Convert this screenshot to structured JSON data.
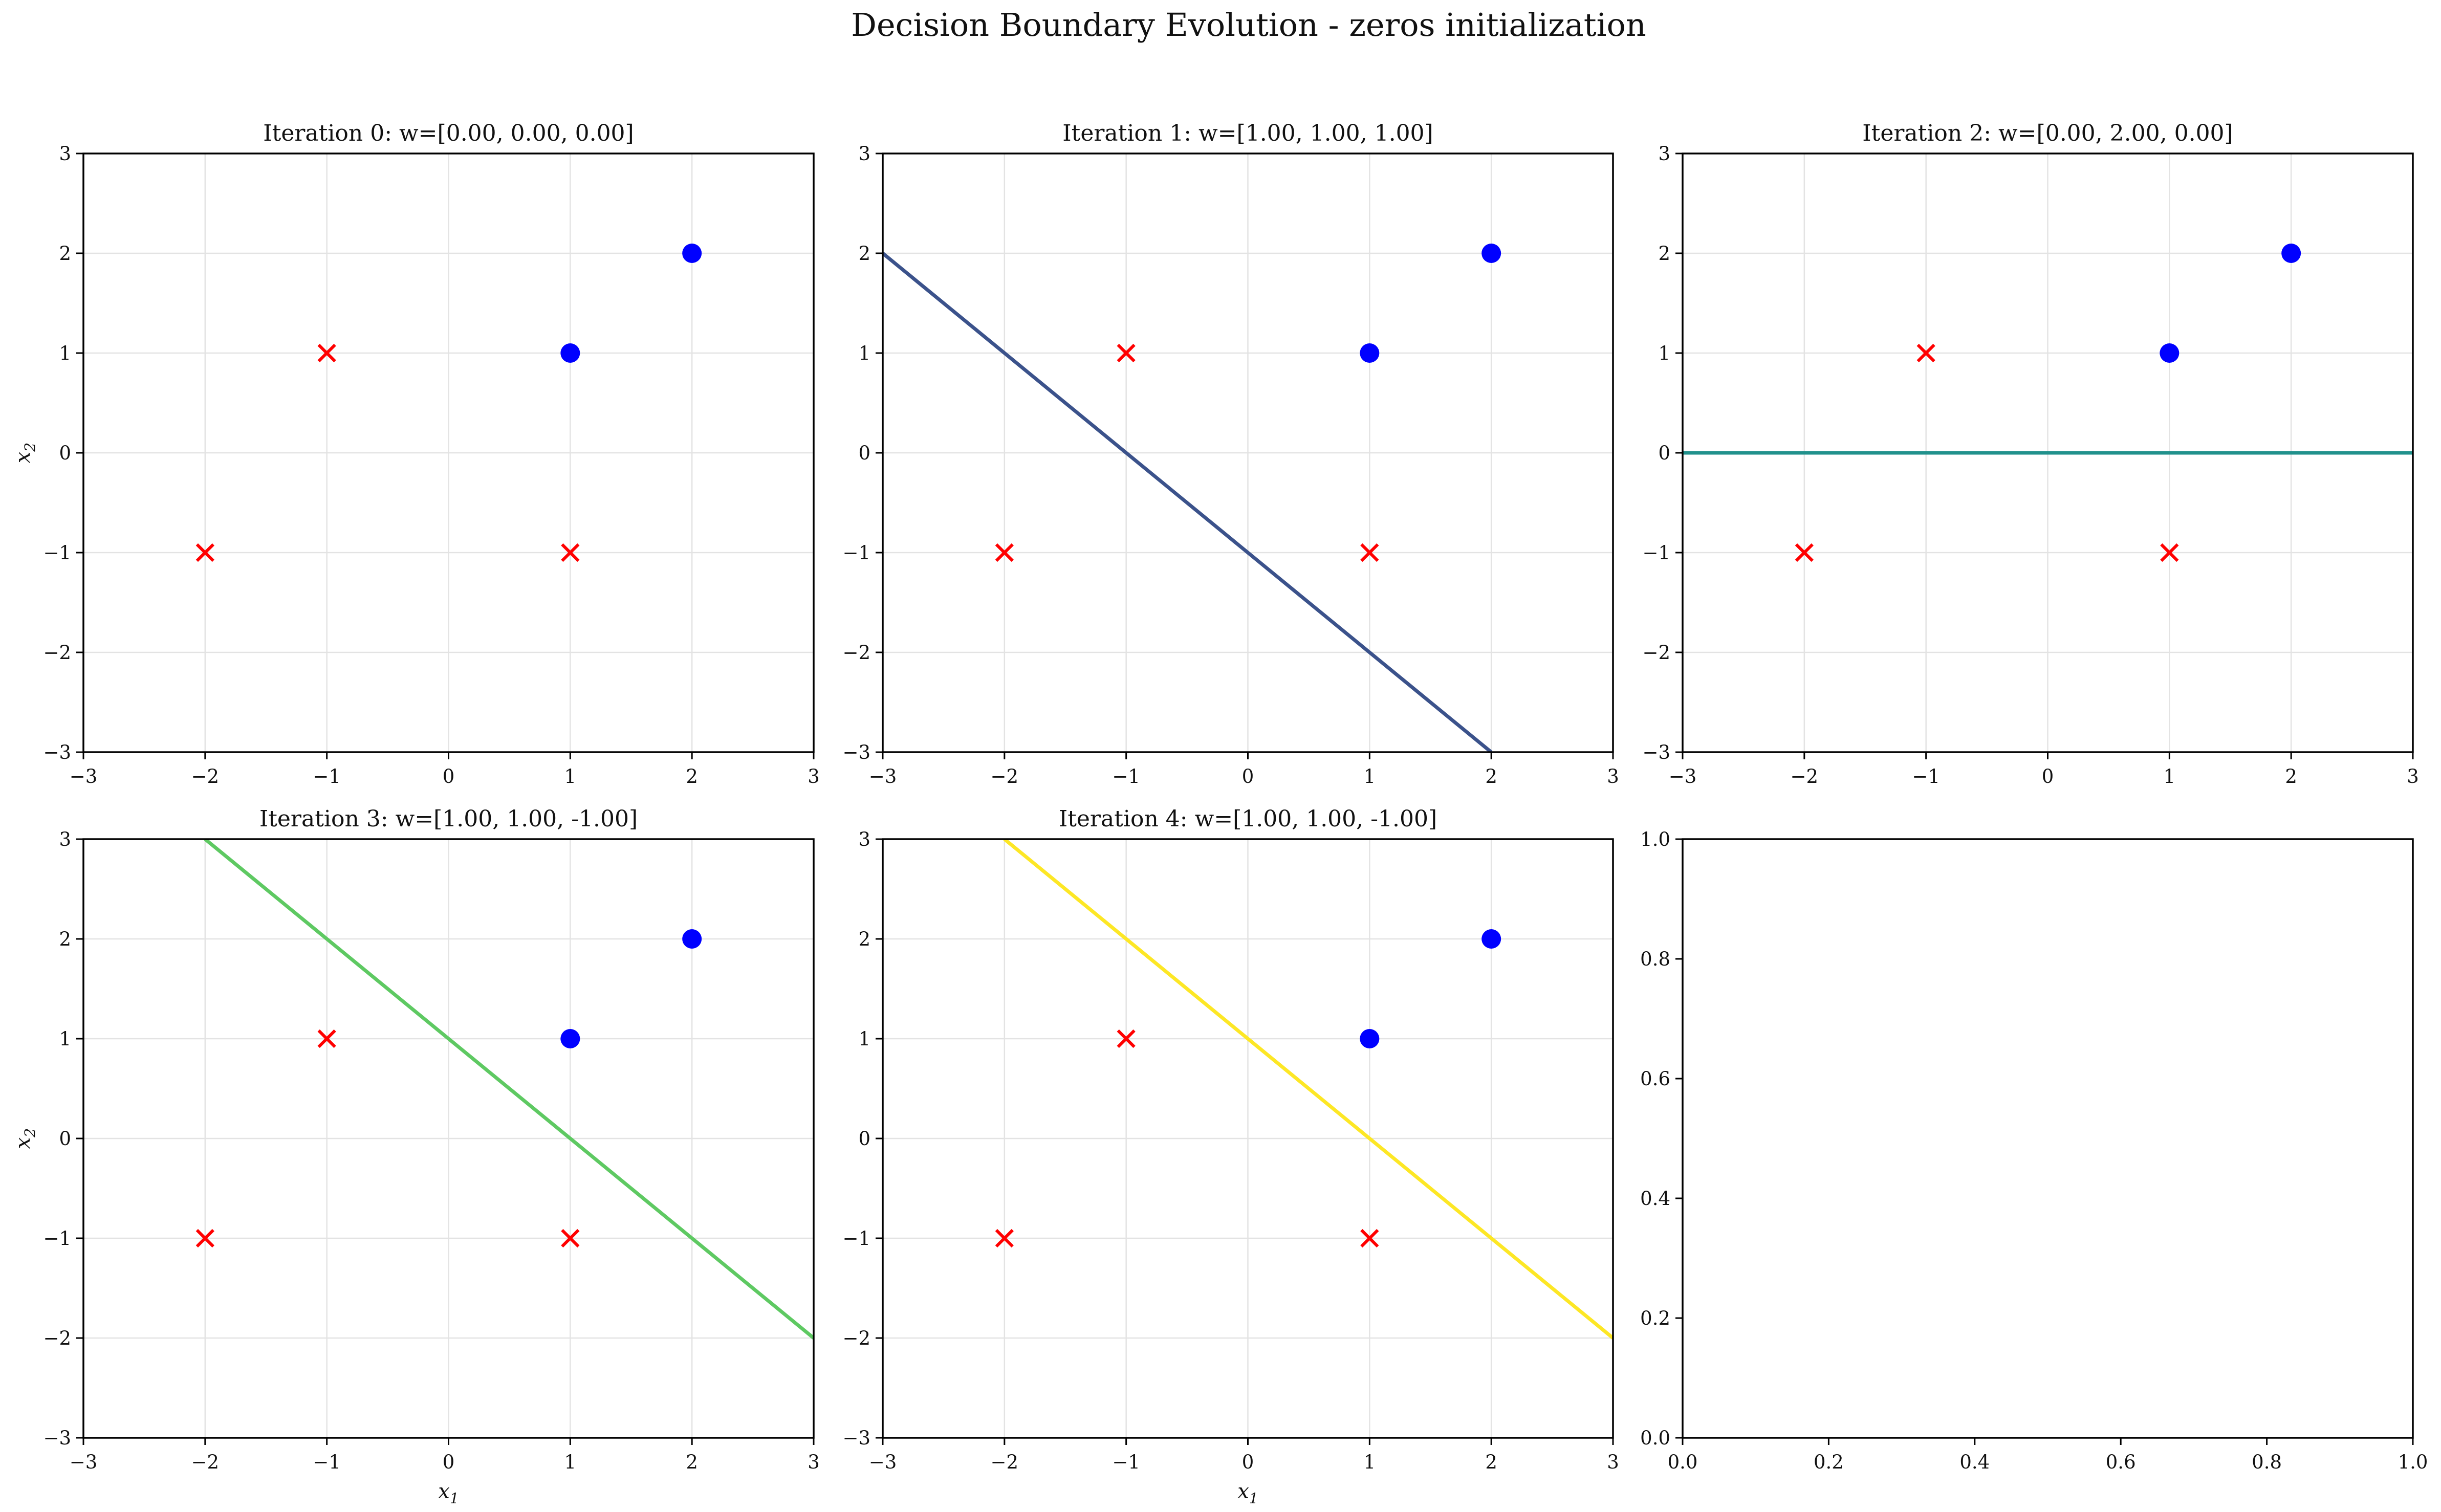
{
  "figure": {
    "title": "Decision Boundary Evolution - zeros initialization"
  },
  "chart_data": [
    {
      "type": "scatter",
      "title": "Iteration 0: w=[0.00, 0.00, 0.00]",
      "xlabel": "",
      "ylabel": "x2",
      "xlim": [
        -3,
        3
      ],
      "ylim": [
        -3,
        3
      ],
      "xticks": [
        "−3",
        "−2",
        "−1",
        "0",
        "1",
        "2",
        "3"
      ],
      "yticks": [
        "−3",
        "−2",
        "−1",
        "0",
        "1",
        "2",
        "3"
      ],
      "grid": true,
      "weights": [
        0.0,
        0.0,
        0.0
      ],
      "boundary": null,
      "series": [
        {
          "marker": "circle",
          "color": "#0000ff",
          "points": [
            [
              1,
              1
            ],
            [
              2,
              2
            ]
          ]
        },
        {
          "marker": "x",
          "color": "#ff0000",
          "points": [
            [
              -1,
              1
            ],
            [
              -2,
              -1
            ],
            [
              1,
              -1
            ]
          ]
        }
      ]
    },
    {
      "type": "scatter",
      "title": "Iteration 1: w=[1.00, 1.00, 1.00]",
      "xlabel": "",
      "ylabel": "",
      "xlim": [
        -3,
        3
      ],
      "ylim": [
        -3,
        3
      ],
      "xticks": [
        "−3",
        "−2",
        "−1",
        "0",
        "1",
        "2",
        "3"
      ],
      "yticks": [
        "−3",
        "−2",
        "−1",
        "0",
        "1",
        "2",
        "3"
      ],
      "grid": true,
      "weights": [
        1.0,
        1.0,
        1.0
      ],
      "boundary": {
        "color": "#3b528b",
        "points": [
          [
            -3,
            2
          ],
          [
            2,
            -3
          ]
        ]
      },
      "series": [
        {
          "marker": "circle",
          "color": "#0000ff",
          "points": [
            [
              1,
              1
            ],
            [
              2,
              2
            ]
          ]
        },
        {
          "marker": "x",
          "color": "#ff0000",
          "points": [
            [
              -1,
              1
            ],
            [
              -2,
              -1
            ],
            [
              1,
              -1
            ]
          ]
        }
      ]
    },
    {
      "type": "scatter",
      "title": "Iteration 2: w=[0.00, 2.00, 0.00]",
      "xlabel": "",
      "ylabel": "",
      "xlim": [
        -3,
        3
      ],
      "ylim": [
        -3,
        3
      ],
      "xticks": [
        "−3",
        "−2",
        "−1",
        "0",
        "1",
        "2",
        "3"
      ],
      "yticks": [
        "−3",
        "−2",
        "−1",
        "0",
        "1",
        "2",
        "3"
      ],
      "grid": true,
      "weights": [
        0.0,
        2.0,
        0.0
      ],
      "boundary": {
        "color": "#21918c",
        "points": [
          [
            -3,
            0
          ],
          [
            3,
            0
          ]
        ]
      },
      "series": [
        {
          "marker": "circle",
          "color": "#0000ff",
          "points": [
            [
              1,
              1
            ],
            [
              2,
              2
            ]
          ]
        },
        {
          "marker": "x",
          "color": "#ff0000",
          "points": [
            [
              -1,
              1
            ],
            [
              -2,
              -1
            ],
            [
              1,
              -1
            ]
          ]
        }
      ]
    },
    {
      "type": "scatter",
      "title": "Iteration 3: w=[1.00, 1.00, -1.00]",
      "xlabel": "x1",
      "ylabel": "x2",
      "xlim": [
        -3,
        3
      ],
      "ylim": [
        -3,
        3
      ],
      "xticks": [
        "−3",
        "−2",
        "−1",
        "0",
        "1",
        "2",
        "3"
      ],
      "yticks": [
        "−3",
        "−2",
        "−1",
        "0",
        "1",
        "2",
        "3"
      ],
      "grid": true,
      "weights": [
        1.0,
        1.0,
        -1.0
      ],
      "boundary": {
        "color": "#5ec962",
        "points": [
          [
            -2,
            3
          ],
          [
            3,
            -2
          ]
        ]
      },
      "series": [
        {
          "marker": "circle",
          "color": "#0000ff",
          "points": [
            [
              1,
              1
            ],
            [
              2,
              2
            ]
          ]
        },
        {
          "marker": "x",
          "color": "#ff0000",
          "points": [
            [
              -1,
              1
            ],
            [
              -2,
              -1
            ],
            [
              1,
              -1
            ]
          ]
        }
      ]
    },
    {
      "type": "scatter",
      "title": "Iteration 4: w=[1.00, 1.00, -1.00]",
      "xlabel": "x1",
      "ylabel": "",
      "xlim": [
        -3,
        3
      ],
      "ylim": [
        -3,
        3
      ],
      "xticks": [
        "−3",
        "−2",
        "−1",
        "0",
        "1",
        "2",
        "3"
      ],
      "yticks": [
        "−3",
        "−2",
        "−1",
        "0",
        "1",
        "2",
        "3"
      ],
      "grid": true,
      "weights": [
        1.0,
        1.0,
        -1.0
      ],
      "boundary": {
        "color": "#fde725",
        "points": [
          [
            -2,
            3
          ],
          [
            3,
            -2
          ]
        ]
      },
      "series": [
        {
          "marker": "circle",
          "color": "#0000ff",
          "points": [
            [
              1,
              1
            ],
            [
              2,
              2
            ]
          ]
        },
        {
          "marker": "x",
          "color": "#ff0000",
          "points": [
            [
              -1,
              1
            ],
            [
              -2,
              -1
            ],
            [
              1,
              -1
            ]
          ]
        }
      ]
    },
    {
      "type": "scatter",
      "title": "",
      "xlabel": "",
      "ylabel": "",
      "xlim": [
        0,
        1
      ],
      "ylim": [
        0,
        1
      ],
      "xticks": [
        "0.0",
        "0.2",
        "0.4",
        "0.6",
        "0.8",
        "1.0"
      ],
      "yticks": [
        "0.0",
        "0.2",
        "0.4",
        "0.6",
        "0.8",
        "1.0"
      ],
      "grid": false,
      "boundary": null,
      "series": []
    }
  ]
}
